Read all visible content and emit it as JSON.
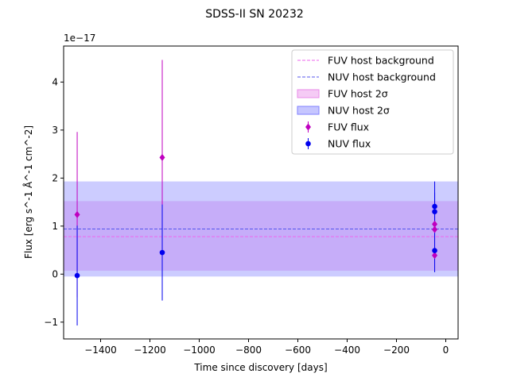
{
  "chart_data": {
    "type": "scatter",
    "title": "SDSS-II SN 20232",
    "xlabel": "Time since discovery [days]",
    "ylabel": "Flux [erg s^-1 Å^-1 cm^-2]",
    "y_multiplier_label": "1e−17",
    "xlim": [
      -1550,
      50
    ],
    "ylim": [
      -1.35,
      4.75
    ],
    "x_ticks": [
      -1400,
      -1200,
      -1000,
      -800,
      -600,
      -400,
      -200,
      0
    ],
    "x_tick_labels": [
      "−1400",
      "−1200",
      "−1000",
      "−800",
      "−600",
      "−400",
      "−200",
      "0"
    ],
    "y_ticks": [
      -1,
      0,
      1,
      2,
      3,
      4
    ],
    "y_tick_labels": [
      "−1",
      "0",
      "1",
      "2",
      "3",
      "4"
    ],
    "legend_position": "top-right",
    "grid": false,
    "host_background": [
      {
        "name": "FUV host background",
        "level": 0.78,
        "color": "#ee66ee"
      },
      {
        "name": "NUV host background",
        "level": 0.94,
        "color": "#5555ee"
      }
    ],
    "host_bands": [
      {
        "name": "FUV host 2σ",
        "low": 0.07,
        "high": 1.52,
        "color": "#e98be9"
      },
      {
        "name": "NUV host 2σ",
        "low": -0.05,
        "high": 1.93,
        "color": "#8080ff"
      }
    ],
    "series": [
      {
        "name": "FUV flux",
        "color": "#bf00bf",
        "marker": "diamond",
        "points": [
          {
            "x": -1495,
            "y": 1.24,
            "err": 1.72
          },
          {
            "x": -1150,
            "y": 2.43,
            "err": 2.03
          },
          {
            "x": -45,
            "y": 1.04,
            "err": 0.0
          },
          {
            "x": -45,
            "y": 0.93,
            "err": 0.0
          },
          {
            "x": -45,
            "y": 0.39,
            "err": 0.0
          }
        ]
      },
      {
        "name": "NUV flux",
        "color": "#0000ee",
        "marker": "circle",
        "points": [
          {
            "x": -1495,
            "y": -0.03,
            "err": 1.04
          },
          {
            "x": -1150,
            "y": 0.45,
            "err": 1.0
          },
          {
            "x": -45,
            "y": 1.41,
            "err": 0.52
          },
          {
            "x": -45,
            "y": 1.3,
            "err": 0.4
          },
          {
            "x": -45,
            "y": 0.49,
            "err": 0.45
          }
        ]
      }
    ]
  }
}
